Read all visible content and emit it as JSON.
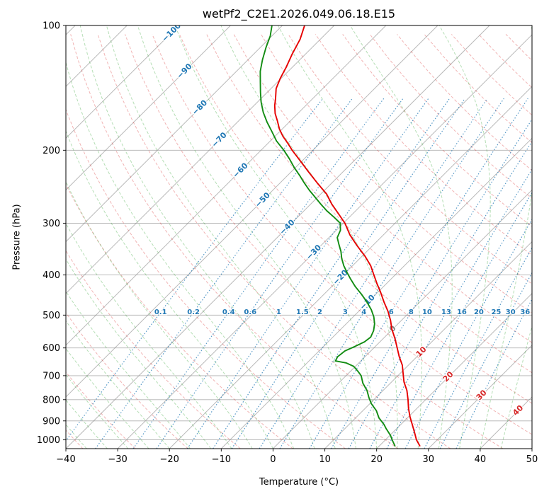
{
  "chart_data": {
    "type": "line",
    "chart_kind": "skew-t-log-p-sounding",
    "title": "wetPf2_C2E1.2026.049.06.18.E15",
    "xlabel": "Temperature (°C)",
    "ylabel": "Pressure (hPa)",
    "xlim": [
      -40,
      50
    ],
    "pressure_range": [
      1050,
      100
    ],
    "x_ticks": [
      -40,
      -30,
      -20,
      -10,
      0,
      10,
      20,
      30,
      40,
      50
    ],
    "y_ticks": [
      100,
      200,
      300,
      400,
      500,
      600,
      700,
      800,
      900,
      1000
    ],
    "skew_degrees": 45,
    "grid": true,
    "isotherms": {
      "start": -160,
      "end": 50,
      "step": 10
    },
    "isotherm_labels": [
      -100,
      -90,
      -80,
      -70,
      -60,
      -50,
      -40,
      -30,
      -20,
      -10,
      0,
      10,
      20,
      30,
      40
    ],
    "isotherm_label_pressures": [
      [
        -100,
        104
      ],
      [
        -90,
        129
      ],
      [
        -80,
        158
      ],
      [
        -70,
        189
      ],
      [
        -60,
        224
      ],
      [
        -50,
        264
      ],
      [
        -40,
        307
      ],
      [
        -30,
        353
      ],
      [
        -20,
        406
      ],
      [
        -10,
        466
      ],
      [
        0,
        540
      ],
      [
        10,
        614
      ],
      [
        20,
        705
      ],
      [
        30,
        781
      ],
      [
        40,
        850
      ]
    ],
    "dry_adiabats_theta_c": {
      "start": -40,
      "end": 220,
      "step": 10
    },
    "moist_adiabats_start_c": {
      "start": -40,
      "end": 44,
      "step": 4
    },
    "mixing_ratio_lines_g_kg": [
      0.1,
      0.2,
      0.4,
      0.6,
      1,
      1.5,
      2,
      3,
      4,
      6,
      8,
      10,
      13,
      16,
      20,
      25,
      30,
      36
    ],
    "mixing_ratio_label_pressure": 492,
    "colors": {
      "grid": "#b0b0b0",
      "isotherm_line": "#8a8a8a",
      "isotherm_label_cold": "#1f77b4",
      "isotherm_label_zero": "#808080",
      "isotherm_label_warm": "#d62728",
      "dry_adiabat": "#d62728",
      "moist_adiabat": "#2ca02c",
      "mixing_ratio": "#1f77b4",
      "temperature": "#e60000",
      "dewpoint": "#128c12",
      "axis": "#000000"
    },
    "series": [
      {
        "name": "temperature",
        "color_key": "temperature",
        "points_p_t": [
          [
            1034,
            27.8
          ],
          [
            1000,
            26.0
          ],
          [
            960,
            24.2
          ],
          [
            920,
            22.3
          ],
          [
            880,
            20.3
          ],
          [
            840,
            18.4
          ],
          [
            800,
            16.6
          ],
          [
            760,
            14.6
          ],
          [
            725,
            12.4
          ],
          [
            690,
            10.5
          ],
          [
            660,
            8.8
          ],
          [
            630,
            6.6
          ],
          [
            600,
            4.5
          ],
          [
            570,
            2.3
          ],
          [
            540,
            -0.2
          ],
          [
            515,
            -2.1
          ],
          [
            490,
            -4.3
          ],
          [
            465,
            -6.9
          ],
          [
            440,
            -9.5
          ],
          [
            420,
            -11.8
          ],
          [
            400,
            -14.1
          ],
          [
            380,
            -16.5
          ],
          [
            360,
            -19.5
          ],
          [
            340,
            -23.0
          ],
          [
            320,
            -26.5
          ],
          [
            300,
            -29.7
          ],
          [
            285,
            -32.7
          ],
          [
            270,
            -35.9
          ],
          [
            255,
            -38.9
          ],
          [
            240,
            -42.8
          ],
          [
            225,
            -46.8
          ],
          [
            210,
            -51.0
          ],
          [
            200,
            -54.0
          ],
          [
            193,
            -56.0
          ],
          [
            185,
            -58.5
          ],
          [
            178,
            -60.5
          ],
          [
            170,
            -62.5
          ],
          [
            163,
            -64.4
          ],
          [
            156,
            -66.0
          ],
          [
            150,
            -67.2
          ],
          [
            142,
            -69.0
          ],
          [
            134,
            -70.2
          ],
          [
            126,
            -71.2
          ],
          [
            117,
            -72.6
          ],
          [
            108,
            -73.9
          ],
          [
            100,
            -75.7
          ]
        ]
      },
      {
        "name": "dewpoint",
        "color_key": "dewpoint",
        "points_p_t": [
          [
            1034,
            23.0
          ],
          [
            1000,
            21.3
          ],
          [
            975,
            20.1
          ],
          [
            940,
            18.0
          ],
          [
            919,
            16.8
          ],
          [
            885,
            14.5
          ],
          [
            850,
            12.6
          ],
          [
            818,
            10.3
          ],
          [
            790,
            8.6
          ],
          [
            760,
            6.9
          ],
          [
            730,
            4.7
          ],
          [
            700,
            2.9
          ],
          [
            685,
            1.6
          ],
          [
            665,
            -0.3
          ],
          [
            652,
            -2.5
          ],
          [
            645,
            -4.9
          ],
          [
            630,
            -5.3
          ],
          [
            610,
            -5.0
          ],
          [
            596,
            -4.0
          ],
          [
            580,
            -3.0
          ],
          [
            565,
            -2.7
          ],
          [
            545,
            -3.4
          ],
          [
            525,
            -4.5
          ],
          [
            505,
            -6.0
          ],
          [
            485,
            -7.9
          ],
          [
            465,
            -10.2
          ],
          [
            445,
            -12.8
          ],
          [
            427,
            -15.4
          ],
          [
            410,
            -17.7
          ],
          [
            395,
            -19.7
          ],
          [
            380,
            -21.7
          ],
          [
            365,
            -23.5
          ],
          [
            351,
            -25.0
          ],
          [
            338,
            -26.7
          ],
          [
            325,
            -28.4
          ],
          [
            312,
            -29.2
          ],
          [
            300,
            -30.6
          ],
          [
            290,
            -33.0
          ],
          [
            280,
            -35.6
          ],
          [
            270,
            -38.0
          ],
          [
            260,
            -40.4
          ],
          [
            250,
            -42.9
          ],
          [
            240,
            -45.3
          ],
          [
            230,
            -47.7
          ],
          [
            220,
            -50.3
          ],
          [
            210,
            -52.8
          ],
          [
            200,
            -55.6
          ],
          [
            190,
            -58.8
          ],
          [
            180,
            -61.6
          ],
          [
            171,
            -64.3
          ],
          [
            162,
            -66.9
          ],
          [
            153,
            -69.3
          ],
          [
            145,
            -71.3
          ],
          [
            137,
            -73.3
          ],
          [
            129,
            -75.4
          ],
          [
            121,
            -77.2
          ],
          [
            113,
            -78.9
          ],
          [
            106,
            -80.3
          ],
          [
            100,
            -82.0
          ]
        ]
      }
    ]
  }
}
